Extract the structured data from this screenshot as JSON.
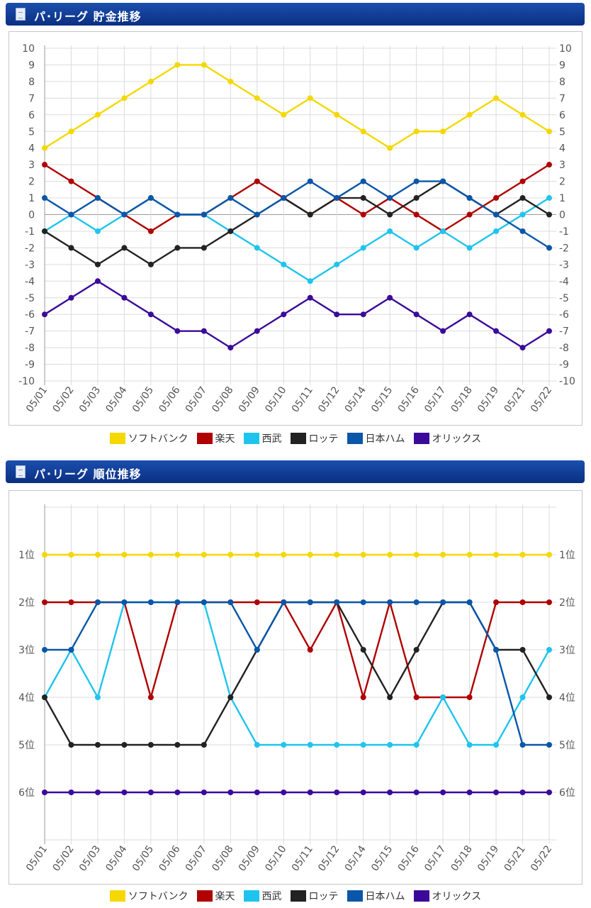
{
  "charts": [
    {
      "title": "パ･リーグ  貯金推移"
    },
    {
      "title": "パ･リーグ  順位推移"
    }
  ],
  "legend": [
    {
      "label": "ソフトバンク",
      "color": "#f5d800"
    },
    {
      "label": "楽天",
      "color": "#b00000"
    },
    {
      "label": "西武",
      "color": "#1fc4ee"
    },
    {
      "label": "ロッテ",
      "color": "#222222"
    },
    {
      "label": "日本ハム",
      "color": "#0a56a8"
    },
    {
      "label": "オリックス",
      "color": "#3b0a9a"
    }
  ],
  "chart_data": [
    {
      "type": "line",
      "title": "パ･リーグ  貯金推移",
      "categories": [
        "05/01",
        "05/02",
        "05/03",
        "05/04",
        "05/05",
        "05/06",
        "05/07",
        "05/08",
        "05/09",
        "05/10",
        "05/11",
        "05/12",
        "05/14",
        "05/15",
        "05/16",
        "05/17",
        "05/18",
        "05/19",
        "05/21",
        "05/22"
      ],
      "ylim": [
        -10,
        10
      ],
      "yticks": [
        "10",
        "9",
        "8",
        "7",
        "6",
        "5",
        "4",
        "3",
        "2",
        "1",
        "0",
        "-1",
        "-2",
        "-3",
        "-4",
        "-5",
        "-6",
        "-7",
        "-8",
        "-9",
        "-10"
      ],
      "grid": true,
      "legend_position": "bottom",
      "series": [
        {
          "name": "ソフトバンク",
          "color": "#f5d800",
          "values": [
            4,
            5,
            6,
            7,
            8,
            9,
            9,
            8,
            7,
            6,
            7,
            6,
            5,
            4,
            5,
            5,
            6,
            7,
            6,
            5
          ]
        },
        {
          "name": "楽天",
          "color": "#b00000",
          "values": [
            3,
            2,
            1,
            0,
            -1,
            0,
            0,
            1,
            2,
            1,
            0,
            1,
            0,
            1,
            0,
            -1,
            0,
            1,
            2,
            3
          ]
        },
        {
          "name": "西武",
          "color": "#1fc4ee",
          "values": [
            -1,
            0,
            -1,
            0,
            1,
            0,
            0,
            -1,
            -2,
            -3,
            -4,
            -3,
            -2,
            -1,
            -2,
            -1,
            -2,
            -1,
            0,
            1
          ]
        },
        {
          "name": "ロッテ",
          "color": "#222222",
          "values": [
            -1,
            -2,
            -3,
            -2,
            -3,
            -2,
            -2,
            -1,
            0,
            1,
            0,
            1,
            1,
            0,
            1,
            2,
            1,
            0,
            1,
            0
          ]
        },
        {
          "name": "日本ハム",
          "color": "#0a56a8",
          "values": [
            1,
            0,
            1,
            0,
            1,
            0,
            0,
            1,
            0,
            1,
            2,
            1,
            2,
            1,
            2,
            2,
            1,
            0,
            -1,
            -2
          ]
        },
        {
          "name": "オリックス",
          "color": "#3b0a9a",
          "values": [
            -6,
            -5,
            -4,
            -5,
            -6,
            -7,
            -7,
            -8,
            -7,
            -6,
            -5,
            -6,
            -6,
            -5,
            -6,
            -7,
            -6,
            -7,
            -8,
            -7
          ]
        }
      ]
    },
    {
      "type": "line",
      "title": "パ･リーグ  順位推移",
      "categories": [
        "05/01",
        "05/02",
        "05/03",
        "05/04",
        "05/05",
        "05/06",
        "05/07",
        "05/08",
        "05/09",
        "05/10",
        "05/11",
        "05/12",
        "05/14",
        "05/15",
        "05/16",
        "05/17",
        "05/18",
        "05/19",
        "05/21",
        "05/22"
      ],
      "ylim": [
        0,
        7
      ],
      "y_inverted": true,
      "yticks": [
        "1位",
        "2位",
        "3位",
        "4位",
        "5位",
        "6位"
      ],
      "grid": true,
      "legend_position": "bottom",
      "series": [
        {
          "name": "ソフトバンク",
          "color": "#f5d800",
          "values": [
            1,
            1,
            1,
            1,
            1,
            1,
            1,
            1,
            1,
            1,
            1,
            1,
            1,
            1,
            1,
            1,
            1,
            1,
            1,
            1
          ]
        },
        {
          "name": "楽天",
          "color": "#b00000",
          "values": [
            2,
            2,
            2,
            2,
            4,
            2,
            2,
            2,
            2,
            2,
            3,
            2,
            4,
            2,
            4,
            4,
            4,
            2,
            2,
            2
          ]
        },
        {
          "name": "西武",
          "color": "#1fc4ee",
          "values": [
            4,
            3,
            4,
            2,
            2,
            2,
            2,
            4,
            5,
            5,
            5,
            5,
            5,
            5,
            5,
            4,
            5,
            5,
            4,
            3
          ]
        },
        {
          "name": "ロッテ",
          "color": "#222222",
          "values": [
            4,
            5,
            5,
            5,
            5,
            5,
            5,
            4,
            3,
            2,
            2,
            2,
            3,
            4,
            3,
            2,
            2,
            3,
            3,
            4
          ]
        },
        {
          "name": "日本ハム",
          "color": "#0a56a8",
          "values": [
            3,
            3,
            2,
            2,
            2,
            2,
            2,
            2,
            3,
            2,
            2,
            2,
            2,
            2,
            2,
            2,
            2,
            3,
            5,
            5
          ]
        },
        {
          "name": "オリックス",
          "color": "#3b0a9a",
          "values": [
            6,
            6,
            6,
            6,
            6,
            6,
            6,
            6,
            6,
            6,
            6,
            6,
            6,
            6,
            6,
            6,
            6,
            6,
            6,
            6
          ]
        }
      ]
    }
  ]
}
